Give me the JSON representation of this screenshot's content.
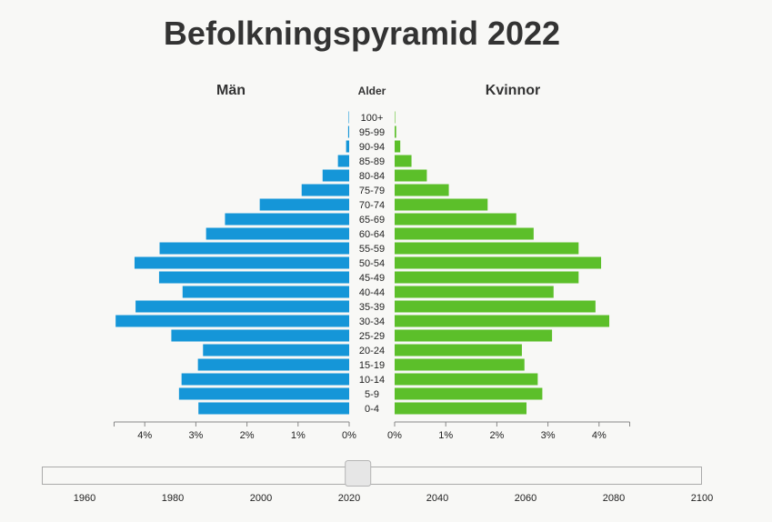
{
  "chart_data": {
    "type": "bar",
    "title": "Befolkningspyramid 2022",
    "left_label": "Män",
    "right_label": "Kvinnor",
    "age_label": "Alder",
    "categories": [
      "100+",
      "95-99",
      "90-94",
      "85-89",
      "80-84",
      "75-79",
      "70-74",
      "65-69",
      "60-64",
      "55-59",
      "50-54",
      "45-49",
      "40-44",
      "35-39",
      "30-34",
      "25-29",
      "20-24",
      "15-19",
      "10-14",
      "5-9",
      "0-4"
    ],
    "series": [
      {
        "name": "Män",
        "color": "#1596d8",
        "values": [
          0.01,
          0.02,
          0.06,
          0.22,
          0.52,
          0.93,
          1.75,
          2.43,
          2.8,
          3.71,
          4.2,
          3.72,
          3.26,
          4.18,
          4.57,
          3.48,
          2.86,
          2.96,
          3.28,
          3.33,
          2.95
        ]
      },
      {
        "name": "Kvinnor",
        "color": "#5cbf2a",
        "values": [
          0.01,
          0.03,
          0.11,
          0.33,
          0.63,
          1.06,
          1.82,
          2.38,
          2.72,
          3.6,
          4.04,
          3.6,
          3.11,
          3.93,
          4.2,
          3.08,
          2.49,
          2.54,
          2.8,
          2.89,
          2.58
        ]
      }
    ],
    "x_ticks_left": [
      "4%",
      "3%",
      "2%",
      "1%",
      "0%"
    ],
    "x_ticks_right": [
      "0%",
      "1%",
      "2%",
      "3%",
      "4%"
    ],
    "xlim": [
      0,
      4.6
    ]
  },
  "slider": {
    "value": 2022,
    "min": 1950,
    "max": 2100,
    "tick_labels": [
      "1960",
      "1980",
      "2000",
      "2020",
      "2040",
      "2060",
      "2080",
      "2100"
    ]
  }
}
